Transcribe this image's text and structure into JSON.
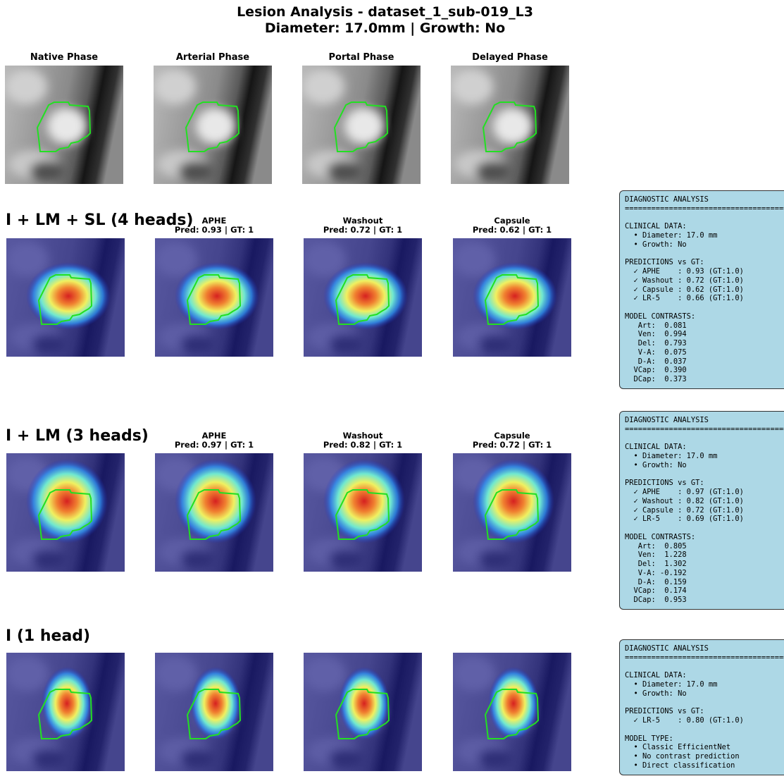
{
  "title": "Lesion Analysis - dataset_1_sub-019_L3",
  "subtitle": "Diameter: 17.0mm | Growth: No",
  "phases": [
    "Native Phase",
    "Arterial Phase",
    "Portal Phase",
    "Delayed Phase"
  ],
  "models": [
    {
      "name": "I + LM + SL (4 heads)",
      "panels": [
        {
          "title": "APHE",
          "caption": "Pred: 0.93 | GT: 1"
        },
        {
          "title": "Washout",
          "caption": "Pred: 0.72 | GT: 1"
        },
        {
          "title": "Capsule",
          "caption": "Pred: 0.62 | GT: 1"
        }
      ],
      "report": [
        "DIAGNOSTIC ANALYSIS",
        "========================================",
        "",
        "CLINICAL DATA:",
        "  • Diameter: 17.0 mm",
        "  • Growth: No",
        "",
        "PREDICTIONS vs GT:",
        "  ✓ APHE    : 0.93 (GT:1.0)",
        "  ✓ Washout : 0.72 (GT:1.0)",
        "  ✓ Capsule : 0.62 (GT:1.0)",
        "  ✓ LR-5    : 0.66 (GT:1.0)",
        "",
        "MODEL CONTRASTS:",
        "   Art:  0.081",
        "   Ven:  0.994",
        "   Del:  0.793",
        "   V-A:  0.075",
        "   D-A:  0.037",
        "  VCap:  0.390",
        "  DCap:  0.373"
      ]
    },
    {
      "name": "I + LM (3 heads)",
      "panels": [
        {
          "title": "APHE",
          "caption": "Pred: 0.97 | GT: 1"
        },
        {
          "title": "Washout",
          "caption": "Pred: 0.82 | GT: 1"
        },
        {
          "title": "Capsule",
          "caption": "Pred: 0.72 | GT: 1"
        }
      ],
      "report": [
        "DIAGNOSTIC ANALYSIS",
        "========================================",
        "",
        "CLINICAL DATA:",
        "  • Diameter: 17.0 mm",
        "  • Growth: No",
        "",
        "PREDICTIONS vs GT:",
        "  ✓ APHE    : 0.97 (GT:1.0)",
        "  ✓ Washout : 0.82 (GT:1.0)",
        "  ✓ Capsule : 0.72 (GT:1.0)",
        "  ✓ LR-5    : 0.69 (GT:1.0)",
        "",
        "MODEL CONTRASTS:",
        "   Art:  0.805",
        "   Ven:  1.228",
        "   Del:  1.302",
        "   V-A: -0.192",
        "   D-A:  0.159",
        "  VCap:  0.174",
        "  DCap:  0.953"
      ]
    },
    {
      "name": "I (1 head)",
      "panels": [],
      "report": [
        "DIAGNOSTIC ANALYSIS",
        "========================================",
        "",
        "CLINICAL DATA:",
        "  • Diameter: 17.0 mm",
        "  • Growth: No",
        "",
        "PREDICTIONS vs GT:",
        "  ✓ LR-5    : 0.80 (GT:1.0)",
        "",
        "MODEL TYPE:",
        "  • Classic EfficientNet",
        "  • No contrast prediction",
        "  • Direct classification"
      ]
    }
  ]
}
